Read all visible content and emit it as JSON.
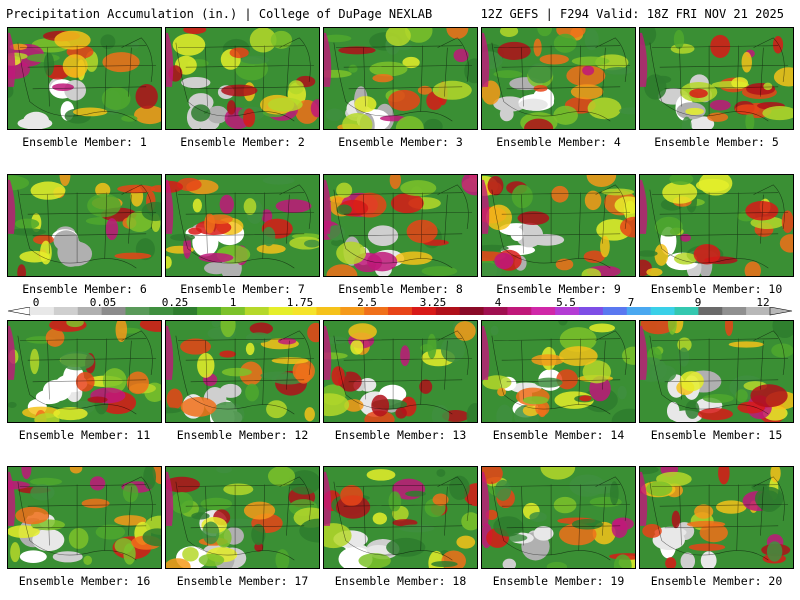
{
  "header": {
    "left": "Precipitation Accumulation (in.) | College of DuPage NEXLAB",
    "right": "12Z GEFS | F294 Valid: 18Z FRI NOV 21 2025"
  },
  "members": [
    {
      "label": "Ensemble Member: 1"
    },
    {
      "label": "Ensemble Member: 2"
    },
    {
      "label": "Ensemble Member: 3"
    },
    {
      "label": "Ensemble Member: 4"
    },
    {
      "label": "Ensemble Member: 5"
    },
    {
      "label": "Ensemble Member: 6"
    },
    {
      "label": "Ensemble Member: 7"
    },
    {
      "label": "Ensemble Member: 8"
    },
    {
      "label": "Ensemble Member: 9"
    },
    {
      "label": "Ensemble Member: 10"
    },
    {
      "label": "Ensemble Member: 11"
    },
    {
      "label": "Ensemble Member: 12"
    },
    {
      "label": "Ensemble Member: 13"
    },
    {
      "label": "Ensemble Member: 14"
    },
    {
      "label": "Ensemble Member: 15"
    },
    {
      "label": "Ensemble Member: 16"
    },
    {
      "label": "Ensemble Member: 17"
    },
    {
      "label": "Ensemble Member: 18"
    },
    {
      "label": "Ensemble Member: 19"
    },
    {
      "label": "Ensemble Member: 20"
    }
  ],
  "colorbar": {
    "labels": [
      "0",
      "0.05",
      "0.25",
      "1",
      "1.75",
      "2.5",
      "3.25",
      "4",
      "5.5",
      "7",
      "9",
      "12"
    ],
    "colors": [
      "#e8e8e8",
      "#cfcfcf",
      "#b0b0b0",
      "#8c8c8c",
      "#5a9a5a",
      "#3f8f3f",
      "#2e7d2e",
      "#4fa82e",
      "#7cc22a",
      "#b5d82a",
      "#e5ee2a",
      "#f5e32a",
      "#f5c21a",
      "#f59a1a",
      "#f0701a",
      "#e84418",
      "#d81a18",
      "#b0101a",
      "#8a0a28",
      "#a01050",
      "#c0187a",
      "#d028a8",
      "#b43cd4",
      "#7e4ee6",
      "#5a78f0",
      "#4aa8f0",
      "#3ad0e8",
      "#34c8b0",
      "#6a6a6a",
      "#909090",
      "#b8b8b8"
    ]
  }
}
